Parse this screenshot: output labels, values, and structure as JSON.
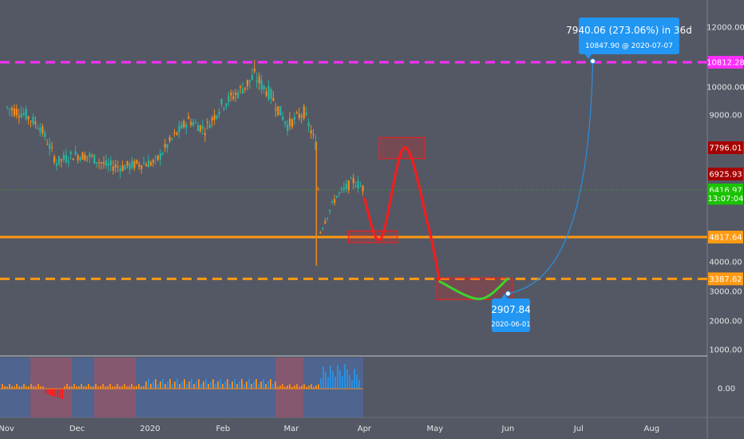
{
  "colors": {
    "background": "#545864",
    "up_candle": "#26b5a0",
    "down_candle": "#f08a1e",
    "orange_level": "#ff9a12",
    "magenta_level": "#ff2dff",
    "red_label": "#a50000",
    "green_label": "#19c300",
    "forecast_red": "#ff1a1a",
    "forecast_green": "#3bd42d",
    "projection_blue": "#2a8fe0",
    "tooltip_blue": "#2196f3",
    "indicator_blue": "#3f6fb9",
    "indicator_red": "#c94a4a",
    "indicator_band": "#4b70b0"
  },
  "chart_data": {
    "type": "candlestick",
    "x_axis": {
      "ticks": [
        "Nov",
        "Dec",
        "2020",
        "Feb",
        "Mar",
        "Apr",
        "May",
        "Jun",
        "Jul",
        "Aug"
      ]
    },
    "y_axis": {
      "ticks": [
        "12000.00",
        "10000.00",
        "9000.00",
        "4000.00",
        "3000.00",
        "2000.00",
        "1000.00"
      ],
      "range": [
        800,
        12800
      ]
    },
    "price_series": [
      {
        "date": "2019-11-01",
        "close": 9250
      },
      {
        "date": "2019-11-08",
        "close": 9050
      },
      {
        "date": "2019-11-15",
        "close": 8550
      },
      {
        "date": "2019-11-22",
        "close": 7300
      },
      {
        "date": "2019-11-29",
        "close": 7550
      },
      {
        "date": "2019-12-06",
        "close": 7500
      },
      {
        "date": "2019-12-13",
        "close": 7200
      },
      {
        "date": "2019-12-20",
        "close": 7150
      },
      {
        "date": "2019-12-27",
        "close": 7250
      },
      {
        "date": "2020-01-03",
        "close": 7300
      },
      {
        "date": "2020-01-10",
        "close": 8100
      },
      {
        "date": "2020-01-17",
        "close": 8800
      },
      {
        "date": "2020-01-24",
        "close": 8450
      },
      {
        "date": "2020-01-31",
        "close": 9350
      },
      {
        "date": "2020-02-07",
        "close": 9800
      },
      {
        "date": "2020-02-14",
        "close": 10350
      },
      {
        "date": "2020-02-21",
        "close": 9700
      },
      {
        "date": "2020-02-28",
        "close": 8600
      },
      {
        "date": "2020-03-06",
        "close": 9100
      },
      {
        "date": "2020-03-11",
        "close": 7900
      },
      {
        "date": "2020-03-13",
        "close": 5000
      },
      {
        "date": "2020-03-20",
        "close": 6200
      },
      {
        "date": "2020-03-27",
        "close": 6700
      },
      {
        "date": "2020-04-01",
        "close": 6417
      }
    ],
    "horizontal_levels": [
      {
        "label": "10812.28",
        "style": "dashed",
        "color": "#ff2dff"
      },
      {
        "label": "4817.64",
        "style": "solid",
        "color": "#ff9a12"
      },
      {
        "label": "3387.62",
        "style": "dashed",
        "color": "#ff9a12"
      },
      {
        "label": "6416.97",
        "style": "dotted",
        "color": "#19c300"
      }
    ],
    "price_labels": [
      {
        "text": "10812.28",
        "value": 10812.28,
        "color": "#ff2dff"
      },
      {
        "text": "7796.01",
        "value": 7796.01,
        "color": "#a50000"
      },
      {
        "text": "6925.93",
        "value": 6925.93,
        "color": "#a50000"
      },
      {
        "text": "6416.97",
        "value": 6416.97,
        "color": "#19c300"
      },
      {
        "text": "13:07:04",
        "value": 6100,
        "color": "#19c300"
      },
      {
        "text": "4817.64",
        "value": 4817.64,
        "color": "#ff9a12"
      },
      {
        "text": "3387.62",
        "value": 3387.62,
        "color": "#ff9a12"
      }
    ],
    "forecast_path": [
      {
        "date": "2020-04-01",
        "value": 6100
      },
      {
        "date": "2020-04-08",
        "value": 4750
      },
      {
        "date": "2020-04-18",
        "value": 7800
      },
      {
        "date": "2020-04-28",
        "value": 5200
      },
      {
        "date": "2020-05-03",
        "value": 3300
      },
      {
        "date": "2020-05-20",
        "value": 2700
      },
      {
        "date": "2020-06-01",
        "value": 3400
      }
    ],
    "projection": {
      "from": {
        "date": "2020-06-01",
        "value": 2907.84
      },
      "to": {
        "date": "2020-07-07",
        "value": 10847.9
      }
    },
    "annotations": {
      "top_tooltip_line1": "7940.06 (273.06%) in 36d",
      "top_tooltip_line2": "10847.90 @ 2020-07-07",
      "bottom_tooltip_line1": "2907.84",
      "bottom_tooltip_line2": "2020-06-01"
    },
    "indicator": {
      "zero_label": "0.00"
    }
  }
}
